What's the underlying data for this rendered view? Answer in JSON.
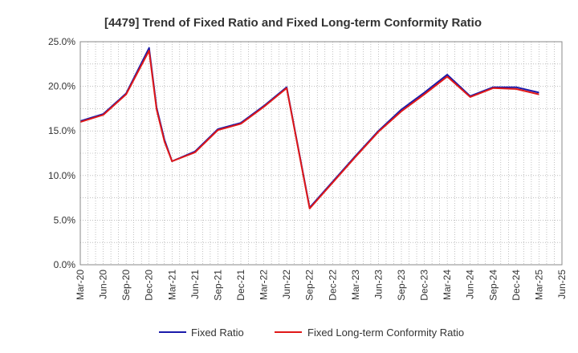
{
  "chart_data": {
    "type": "line",
    "title": "[4479]  Trend of Fixed Ratio and Fixed Long-term Conformity Ratio",
    "xlabel": "",
    "ylabel": "",
    "ylim": [
      0,
      25
    ],
    "yticks": [
      "0.0%",
      "5.0%",
      "10.0%",
      "15.0%",
      "20.0%",
      "25.0%"
    ],
    "xticks": [
      "Mar-20",
      "Jun-20",
      "Sep-20",
      "Dec-20",
      "Mar-21",
      "Jun-21",
      "Sep-21",
      "Dec-21",
      "Mar-22",
      "Jun-22",
      "Sep-22",
      "Dec-22",
      "Mar-23",
      "Jun-23",
      "Sep-23",
      "Dec-23",
      "Mar-24",
      "Jun-24",
      "Sep-24",
      "Dec-24",
      "Mar-25",
      "Jun-25"
    ],
    "grid": true,
    "legend_position": "bottom",
    "x": [
      0,
      1,
      2,
      3,
      3.33,
      3.67,
      4,
      5,
      6,
      7,
      8,
      9,
      10,
      11,
      12,
      13,
      14,
      15,
      16,
      17,
      18,
      19,
      20
    ],
    "series": [
      {
        "name": "Fixed Ratio",
        "color": "#1a1aaa",
        "values": [
          16.1,
          16.9,
          19.2,
          24.3,
          17.6,
          14.0,
          11.6,
          12.7,
          15.2,
          15.9,
          17.8,
          19.9,
          6.4,
          9.3,
          12.2,
          15.0,
          17.4,
          19.3,
          21.3,
          18.9,
          19.9,
          19.9,
          19.3
        ]
      },
      {
        "name": "Fixed Long-term Conformity Ratio",
        "color": "#e01818",
        "values": [
          16.0,
          16.8,
          19.1,
          24.0,
          17.4,
          13.8,
          11.6,
          12.6,
          15.1,
          15.8,
          17.7,
          19.8,
          6.3,
          9.2,
          12.1,
          14.9,
          17.2,
          19.1,
          21.1,
          18.8,
          19.8,
          19.7,
          19.1
        ]
      }
    ]
  }
}
